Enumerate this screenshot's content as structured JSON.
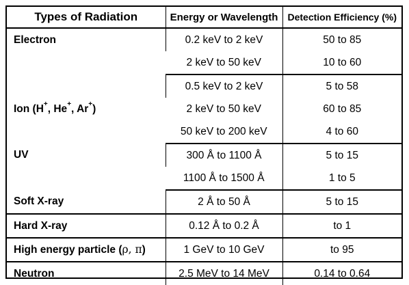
{
  "header": {
    "col1": "Types of Radiation",
    "col2": "Energy or Wavelength",
    "col3": "Detection Efficiency (%)"
  },
  "rows": [
    {
      "type": "Electron",
      "energy": [
        "0.2 keV to 2 keV",
        "2 keV to 50 keV"
      ],
      "efficiency": [
        "50 to 85",
        "10 to 60"
      ]
    },
    {
      "type_parts": [
        "Ion (H",
        "+",
        ", He",
        "+",
        ", Ar",
        "+",
        ")"
      ],
      "energy": [
        "0.5 keV to 2 keV",
        "2 keV to 50 keV",
        "50 keV to 200 keV"
      ],
      "efficiency": [
        "5 to 58",
        "60 to 85",
        "4 to 60"
      ]
    },
    {
      "type": "UV",
      "energy": [
        "300 Å to 1100 Å",
        "1100 Å to 1500 Å"
      ],
      "efficiency": [
        "5 to 15",
        "1 to 5"
      ]
    },
    {
      "type": "Soft X-ray",
      "energy": [
        "2 Å to 50 Å"
      ],
      "efficiency": [
        "5 to 15"
      ]
    },
    {
      "type": "Hard X-ray",
      "energy": [
        "0.12 Å to 0.2 Å"
      ],
      "efficiency": [
        "to 1"
      ]
    },
    {
      "type_parts": [
        "High energy particle (",
        "ρ, π",
        ")"
      ],
      "energy": [
        "1 GeV to 10 GeV"
      ],
      "efficiency": [
        "to 95"
      ]
    },
    {
      "type": "Neutron",
      "energy": [
        "2.5 MeV to 14 MeV"
      ],
      "efficiency": [
        "0.14 to 0.64"
      ]
    }
  ]
}
